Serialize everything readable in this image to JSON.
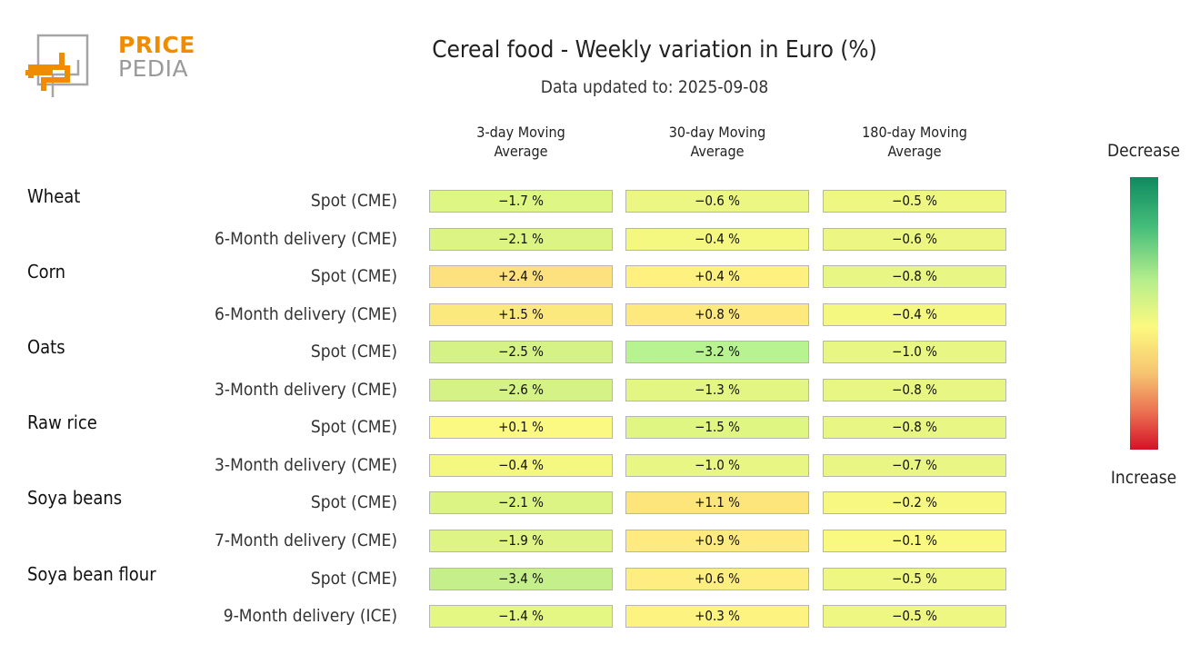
{
  "logo": {
    "top": "PRICE",
    "bottom": "PEDIA"
  },
  "title": "Cereal food - Weekly variation in Euro (%)",
  "subtitle": "Data updated to: 2025-09-08",
  "columns": [
    {
      "line1": "3-day Moving",
      "line2": "Average"
    },
    {
      "line1": "30-day Moving",
      "line2": "Average"
    },
    {
      "line1": "180-day Moving",
      "line2": "Average"
    }
  ],
  "groups": [
    {
      "name": "Wheat",
      "rows": [
        "Spot (CME)",
        "6-Month delivery (CME)"
      ]
    },
    {
      "name": "Corn",
      "rows": [
        "Spot (CME)",
        "6-Month delivery (CME)"
      ]
    },
    {
      "name": "Oats",
      "rows": [
        "Spot (CME)",
        "3-Month delivery (CME)"
      ]
    },
    {
      "name": "Raw rice",
      "rows": [
        "Spot (CME)",
        "3-Month delivery (CME)"
      ]
    },
    {
      "name": "Soya beans",
      "rows": [
        "Spot (CME)",
        "7-Month delivery (CME)"
      ]
    },
    {
      "name": "Soya bean flour",
      "rows": [
        "Spot (CME)",
        "9-Month delivery (ICE)"
      ]
    }
  ],
  "legend": {
    "top": "Decrease",
    "bottom": "Increase"
  },
  "chart_data": {
    "type": "heatmap",
    "title": "Cereal food - Weekly variation in Euro (%)",
    "subtitle": "Data updated to: 2025-09-08",
    "unit": "%",
    "columns": [
      "3-day Moving Average",
      "30-day Moving Average",
      "180-day Moving Average"
    ],
    "rows": [
      {
        "group": "Wheat",
        "label": "Spot (CME)",
        "values": [
          -1.7,
          -0.6,
          -0.5
        ]
      },
      {
        "group": "Wheat",
        "label": "6-Month delivery (CME)",
        "values": [
          -2.1,
          -0.4,
          -0.6
        ]
      },
      {
        "group": "Corn",
        "label": "Spot (CME)",
        "values": [
          2.4,
          0.4,
          -0.8
        ]
      },
      {
        "group": "Corn",
        "label": "6-Month delivery (CME)",
        "values": [
          1.5,
          0.8,
          -0.4
        ]
      },
      {
        "group": "Oats",
        "label": "Spot (CME)",
        "values": [
          -2.5,
          -3.2,
          -1.0
        ]
      },
      {
        "group": "Oats",
        "label": "3-Month delivery (CME)",
        "values": [
          -2.6,
          -1.3,
          -0.8
        ]
      },
      {
        "group": "Raw rice",
        "label": "Spot (CME)",
        "values": [
          0.1,
          -1.5,
          -0.8
        ]
      },
      {
        "group": "Raw rice",
        "label": "3-Month delivery (CME)",
        "values": [
          -0.4,
          -1.0,
          -0.7
        ]
      },
      {
        "group": "Soya beans",
        "label": "Spot (CME)",
        "values": [
          -2.1,
          1.1,
          -0.2
        ]
      },
      {
        "group": "Soya beans",
        "label": "7-Month delivery (CME)",
        "values": [
          -1.9,
          0.9,
          -0.1
        ]
      },
      {
        "group": "Soya bean flour",
        "label": "Spot (CME)",
        "values": [
          -3.4,
          0.6,
          -0.5
        ]
      },
      {
        "group": "Soya bean flour",
        "label": "9-Month delivery (ICE)",
        "values": [
          -1.4,
          0.3,
          -0.5
        ]
      }
    ],
    "colors": {
      "scale": [
        "#0f8a5f",
        "#44bd7a",
        "#b6ee8c",
        "#fcf97f",
        "#f6c471",
        "#eb7252",
        "#d51227"
      ],
      "cells": {
        "-3.4": "#c5ef8b",
        "-3.2": "#b7f391",
        "-2.6": "#d4f285",
        "-2.5": "#d4f285",
        "-2.1": "#dcf484",
        "-1.9": "#def485",
        "-1.7": "#def684",
        "-1.5": "#dff683",
        "-1.4": "#e4f782",
        "-1.3": "#e3f683",
        "-1.0": "#e8f683",
        "-0.8": "#e8f683",
        "-0.7": "#e9f683",
        "-0.6": "#ecf783",
        "-0.5": "#eef782",
        "-0.4": "#f4f881",
        "-0.2": "#f6f881",
        "-0.1": "#f9f980",
        "0.1": "#fcf983",
        "0.3": "#fdf381",
        "0.4": "#fef17f",
        "0.6": "#feed80",
        "0.8": "#fee97e",
        "0.9": "#feea7e",
        "1.1": "#fde57c",
        "1.5": "#fce97d",
        "2.4": "#fce17e"
      }
    }
  }
}
